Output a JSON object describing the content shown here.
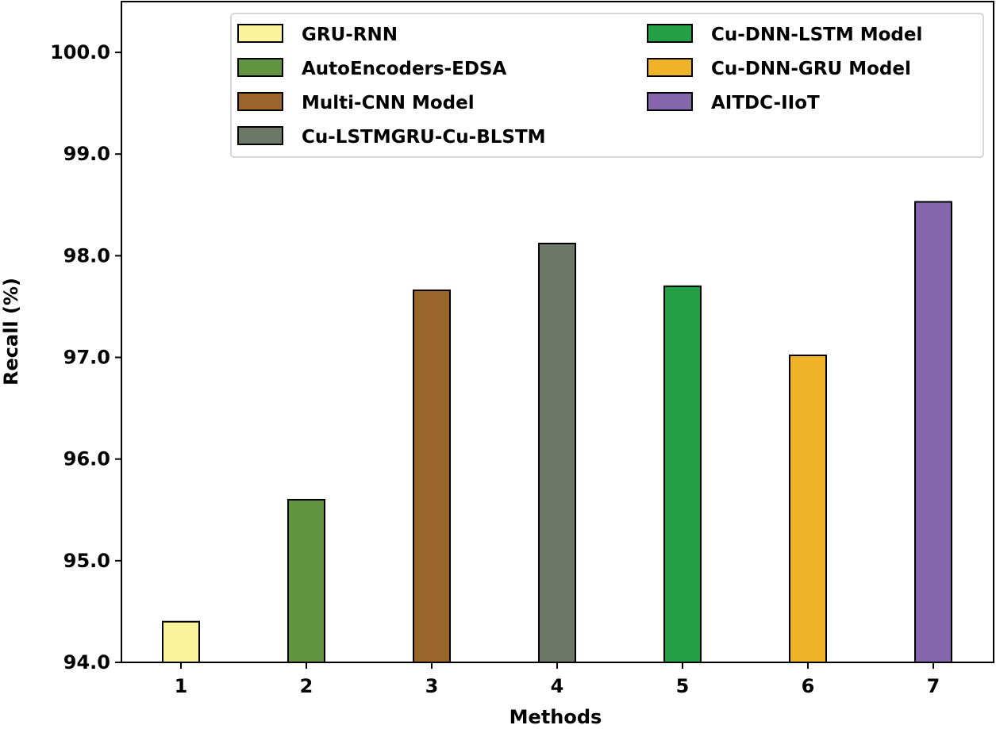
{
  "chart_data": {
    "type": "bar",
    "title": "",
    "xlabel": "Methods",
    "ylabel": "Recall (%)",
    "ylim": [
      94.0,
      100.5
    ],
    "yticks": [
      "94.0",
      "95.0",
      "96.0",
      "97.0",
      "98.0",
      "99.0",
      "100.0"
    ],
    "categories": [
      "1",
      "2",
      "3",
      "4",
      "5",
      "6",
      "7"
    ],
    "series": [
      {
        "name": "GRU-RNN",
        "category": "1",
        "value": 94.4,
        "color": "#fbf29c"
      },
      {
        "name": "AutoEncoders-EDSA",
        "category": "2",
        "value": 95.6,
        "color": "#629440"
      },
      {
        "name": "Multi-CNN Model",
        "category": "3",
        "value": 97.66,
        "color": "#9a652a"
      },
      {
        "name": "Cu-LSTMGRU-Cu-BLSTM",
        "category": "4",
        "value": 98.12,
        "color": "#6c7768"
      },
      {
        "name": "Cu-DNN-LSTM Model",
        "category": "5",
        "value": 97.7,
        "color": "#23a043"
      },
      {
        "name": "Cu-DNN-GRU Model",
        "category": "6",
        "value": 97.02,
        "color": "#efb228"
      },
      {
        "name": "AITDC-IIoT",
        "category": "7",
        "value": 98.53,
        "color": "#8566ad"
      }
    ],
    "legend": {
      "placement": "top-right",
      "columns": [
        [
          "GRU-RNN",
          "AutoEncoders-EDSA",
          "Multi-CNN Model",
          "Cu-LSTMGRU-Cu-BLSTM"
        ],
        [
          "Cu-DNN-LSTM Model",
          "Cu-DNN-GRU Model",
          "AITDC-IIoT"
        ]
      ]
    },
    "grid": false
  }
}
